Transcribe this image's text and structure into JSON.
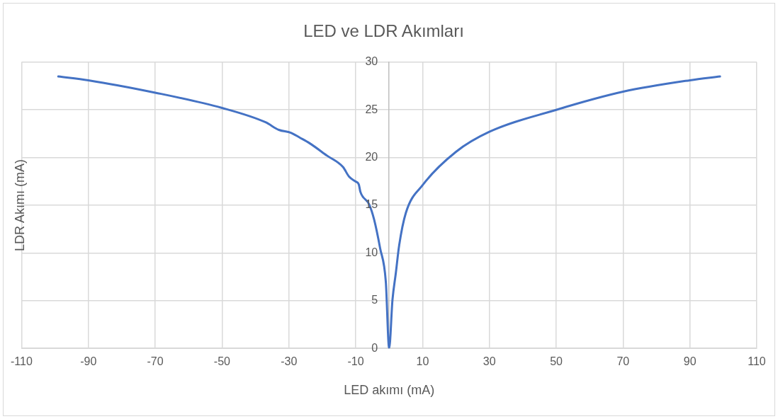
{
  "chart_data": {
    "type": "line",
    "title": "LED ve LDR Akımları",
    "xlabel": "LED akımı (mA)",
    "ylabel": "LDR Akımı (mA)",
    "x": [
      -99,
      -90,
      -70,
      -50,
      -37,
      -33,
      -29.4,
      -26.8,
      -23.8,
      -18.6,
      -13.8,
      -12,
      -10.1,
      -9.1,
      -8.6,
      -6,
      -4.5,
      -2.7,
      -1,
      0,
      1,
      2,
      3,
      5,
      10,
      20,
      30,
      50,
      70,
      90,
      99
    ],
    "series": [
      {
        "color": "#4472c4",
        "values": [
          28.5,
          28.1,
          26.8,
          25.2,
          23.7,
          22.9,
          22.6,
          22.1,
          21.5,
          20.2,
          19,
          18,
          17.5,
          17.2,
          16.4,
          15.1,
          13.5,
          10.5,
          7,
          0,
          5.1,
          7.9,
          10.8,
          14.2,
          17.1,
          20.6,
          22.7,
          25,
          26.9,
          28.1,
          28.5
        ]
      }
    ],
    "xlim": [
      -110,
      110
    ],
    "xticks": [
      -110,
      -90,
      -70,
      -50,
      -30,
      -10,
      10,
      30,
      50,
      70,
      90,
      110
    ],
    "ylim": [
      0,
      30
    ],
    "yticks": [
      0,
      5,
      10,
      15,
      20,
      25,
      30
    ],
    "grid": true,
    "marker": "none",
    "line_style": "solid",
    "legend": false
  }
}
